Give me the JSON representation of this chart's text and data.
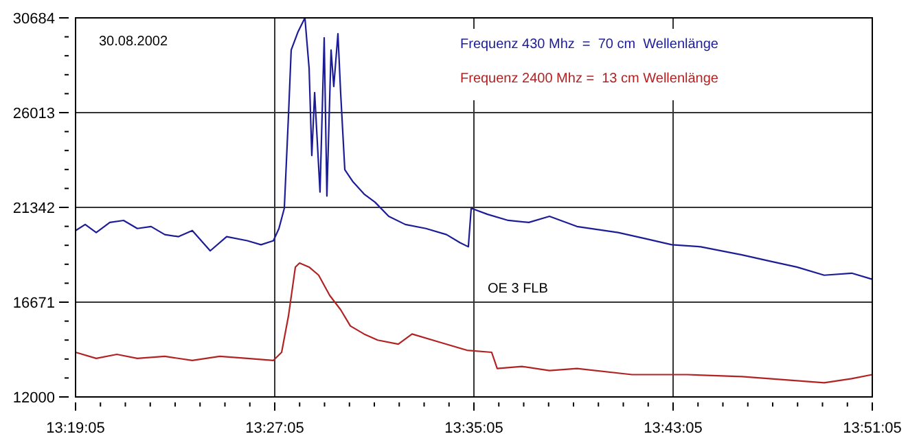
{
  "chart_data": {
    "type": "line",
    "legend": "top right",
    "grid": true,
    "marker": "none",
    "line_style": "solid",
    "annotations": [
      "30.08.2002",
      "OE 3 FLB"
    ],
    "xlim": [
      13.318056,
      13.851389
    ],
    "ylim": [
      12000,
      30684
    ],
    "xticks": [
      {
        "value": 13.318056,
        "label": "13:19:05"
      },
      {
        "value": 13.334722,
        "label": null
      },
      {
        "value": 13.351389,
        "label": null
      },
      {
        "value": 13.368056,
        "label": null
      },
      {
        "value": 13.384722,
        "label": null
      },
      {
        "value": 13.401389,
        "label": null
      },
      {
        "value": 13.418056,
        "label": null
      },
      {
        "value": 13.434722,
        "label": null
      },
      {
        "value": 13.451389,
        "label": "13:27:05"
      },
      {
        "value": 13.468056,
        "label": null
      },
      {
        "value": 13.484722,
        "label": null
      },
      {
        "value": 13.501389,
        "label": null
      },
      {
        "value": 13.518056,
        "label": null
      },
      {
        "value": 13.534722,
        "label": null
      },
      {
        "value": 13.551389,
        "label": null
      },
      {
        "value": 13.568056,
        "label": null
      },
      {
        "value": 13.584722,
        "label": "13:35:05"
      },
      {
        "value": 13.601389,
        "label": null
      },
      {
        "value": 13.618056,
        "label": null
      },
      {
        "value": 13.634722,
        "label": null
      },
      {
        "value": 13.651389,
        "label": null
      },
      {
        "value": 13.668056,
        "label": null
      },
      {
        "value": 13.684722,
        "label": null
      },
      {
        "value": 13.701389,
        "label": null
      },
      {
        "value": 13.718056,
        "label": "13:43:05"
      },
      {
        "value": 13.734722,
        "label": null
      },
      {
        "value": 13.751389,
        "label": null
      },
      {
        "value": 13.768056,
        "label": null
      },
      {
        "value": 13.784722,
        "label": null
      },
      {
        "value": 13.801389,
        "label": null
      },
      {
        "value": 13.818056,
        "label": null
      },
      {
        "value": 13.834722,
        "label": null
      },
      {
        "value": 13.851389,
        "label": "13:51:05"
      }
    ],
    "yticks": [
      12000,
      {
        "value": 12934.2,
        "label": null
      },
      {
        "value": 13868.4,
        "label": null
      },
      {
        "value": 14802.6,
        "label": null
      },
      {
        "value": 15736.8,
        "label": null
      },
      16671,
      {
        "value": 17605.2,
        "label": null
      },
      {
        "value": 18539.4,
        "label": null
      },
      {
        "value": 19473.6,
        "label": null
      },
      {
        "value": 20407.8,
        "label": null
      },
      21342,
      {
        "value": 22276.2,
        "label": null
      },
      {
        "value": 23210.4,
        "label": null
      },
      {
        "value": 24144.6,
        "label": null
      },
      {
        "value": 25078.8,
        "label": null
      },
      26013,
      {
        "value": 26947.2,
        "label": null
      },
      {
        "value": 27881.4,
        "label": null
      },
      {
        "value": 28815.6,
        "label": null
      },
      {
        "value": 29749.8,
        "label": null
      },
      30684
    ],
    "series": [
      {
        "name": "Frequenz 430 Mhz  =  70 cm  Wellenlänge",
        "color": "#1c1c96",
        "x": [
          13.3181,
          13.3245,
          13.3319,
          13.341,
          13.3502,
          13.3594,
          13.3686,
          13.3778,
          13.387,
          13.3962,
          13.4082,
          13.4192,
          13.433,
          13.4422,
          13.4505,
          13.4542,
          13.4578,
          13.4606,
          13.4624,
          13.467,
          13.4716,
          13.4744,
          13.4762,
          13.4781,
          13.4817,
          13.4845,
          13.4863,
          13.4891,
          13.4909,
          13.4937,
          13.4955,
          13.4983,
          13.5038,
          13.5112,
          13.5185,
          13.5277,
          13.5388,
          13.5526,
          13.5664,
          13.5755,
          13.581,
          13.5829,
          13.5939,
          13.6077,
          13.6215,
          13.6353,
          13.6537,
          13.6813,
          13.6997,
          13.7172,
          13.7365,
          13.7641,
          13.7825,
          13.8009,
          13.8192,
          13.8376,
          13.8513
        ],
        "values": [
          20200,
          20500,
          20100,
          20600,
          20700,
          20300,
          20400,
          20000,
          19900,
          20200,
          19200,
          19900,
          19700,
          19500,
          19700,
          20300,
          21300,
          25900,
          29100,
          30000,
          30684,
          28200,
          23900,
          27000,
          22100,
          29700,
          21900,
          29100,
          27300,
          29900,
          27000,
          23200,
          22600,
          22000,
          21600,
          20900,
          20500,
          20300,
          20000,
          19600,
          19400,
          21300,
          21000,
          20700,
          20600,
          20900,
          20400,
          20100,
          19800,
          19500,
          19400,
          19000,
          18700,
          18400,
          18000,
          18100,
          17800
        ]
      },
      {
        "name": "Frequenz 2400 Mhz =  13 cm Wellenlänge",
        "color": "#b22222",
        "x": [
          13.3181,
          13.3319,
          13.3457,
          13.3594,
          13.3778,
          13.3962,
          13.4146,
          13.433,
          13.4505,
          13.456,
          13.4606,
          13.4652,
          13.468,
          13.4744,
          13.4808,
          13.4882,
          13.4955,
          13.502,
          13.5112,
          13.5203,
          13.5341,
          13.5433,
          13.5617,
          13.5801,
          13.5966,
          13.6003,
          13.6169,
          13.6353,
          13.6537,
          13.6905,
          13.7273,
          13.7641,
          13.8009,
          13.8192,
          13.8376,
          13.8513
        ],
        "values": [
          14200,
          13900,
          14100,
          13900,
          14000,
          13800,
          14000,
          13900,
          13800,
          14200,
          16000,
          18400,
          18600,
          18400,
          18000,
          17000,
          16300,
          15500,
          15100,
          14800,
          14600,
          15100,
          14700,
          14300,
          14200,
          13400,
          13500,
          13300,
          13400,
          13100,
          13100,
          13000,
          12800,
          12700,
          12900,
          13100
        ]
      }
    ]
  }
}
